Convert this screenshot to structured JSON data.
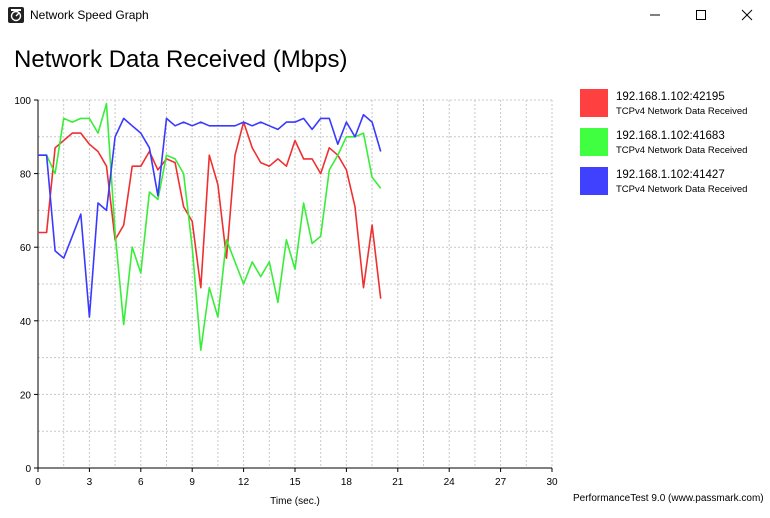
{
  "window": {
    "title": "Network Speed Graph",
    "icon": "network-graph-icon",
    "controls": [
      "minimize-icon",
      "maximize-icon",
      "close-icon"
    ]
  },
  "heading": "Network Data Received (Mbps)",
  "footer": "PerformanceTest 9.0 (www.passmark.com)",
  "colors": {
    "red": "#ff4040",
    "green": "#40ff40",
    "blue": "#4040ff",
    "line_red": "#f03030",
    "line_green": "#38ee38",
    "line_blue": "#3a3aff"
  },
  "legend": [
    {
      "name": "192.168.1.102:42195",
      "sub": "TCPv4 Network Data Received",
      "color": "#ff4040"
    },
    {
      "name": "192.168.1.102:41683",
      "sub": "TCPv4 Network Data Received",
      "color": "#40ff40"
    },
    {
      "name": "192.168.1.102:41427",
      "sub": "TCPv4 Network Data Received",
      "color": "#4040ff"
    }
  ],
  "chart_data": {
    "type": "line",
    "xlabel": "Time (sec.)",
    "ylabel": "",
    "xlim": [
      0,
      30
    ],
    "ylim": [
      0,
      100
    ],
    "xticks": [
      0,
      3,
      6,
      9,
      12,
      15,
      18,
      21,
      24,
      27,
      30
    ],
    "yticks": [
      0,
      20,
      40,
      60,
      80,
      100
    ],
    "grid": true,
    "legend_position": "right",
    "series": [
      {
        "name": "192.168.1.102:42195",
        "color": "#f03030",
        "x": [
          0,
          0.5,
          1,
          1.5,
          2,
          2.5,
          3,
          3.5,
          4,
          4.5,
          5,
          5.5,
          6,
          6.5,
          7,
          7.5,
          8,
          8.5,
          9,
          9.5,
          10,
          10.5,
          11,
          11.5,
          12,
          12.5,
          13,
          13.5,
          14,
          14.5,
          15,
          15.5,
          16,
          16.5,
          17,
          17.5,
          18,
          18.5,
          19,
          19.5,
          20
        ],
        "y": [
          64,
          64,
          87,
          89,
          91,
          91,
          88,
          86,
          82,
          62,
          66,
          82,
          82,
          86,
          81,
          84,
          83,
          71,
          67,
          49,
          85,
          77,
          57,
          85,
          94,
          87,
          83,
          82,
          84,
          82,
          89,
          84,
          84,
          80,
          87,
          85,
          81,
          71,
          49,
          66,
          46
        ]
      },
      {
        "name": "192.168.1.102:41683",
        "color": "#38ee38",
        "x": [
          0,
          0.5,
          1,
          1.5,
          2,
          2.5,
          3,
          3.5,
          4,
          4.5,
          5,
          5.5,
          6,
          6.5,
          7,
          7.5,
          8,
          8.5,
          9,
          9.5,
          10,
          10.5,
          11,
          11.5,
          12,
          12.5,
          13,
          13.5,
          14,
          14.5,
          15,
          15.5,
          16,
          16.5,
          17,
          17.5,
          18,
          18.5,
          19,
          19.5,
          20
        ],
        "y": [
          85,
          85,
          80,
          95,
          94,
          95,
          95,
          91,
          99,
          64,
          39,
          60,
          53,
          75,
          73,
          85,
          84,
          80,
          60,
          32,
          49,
          41,
          62,
          56,
          50,
          56,
          52,
          56,
          45,
          62,
          54,
          72,
          61,
          63,
          81,
          85,
          90,
          90,
          91,
          79,
          76
        ]
      },
      {
        "name": "192.168.1.102:41427",
        "color": "#3a3aff",
        "x": [
          0,
          0.5,
          1,
          1.5,
          2,
          2.5,
          3,
          3.5,
          4,
          4.5,
          5,
          5.5,
          6,
          6.5,
          7,
          7.5,
          8,
          8.5,
          9,
          9.5,
          10,
          10.5,
          11,
          11.5,
          12,
          12.5,
          13,
          13.5,
          14,
          14.5,
          15,
          15.5,
          16,
          16.5,
          17,
          17.5,
          18,
          18.5,
          19,
          19.5,
          20
        ],
        "y": [
          85,
          85,
          59,
          57,
          63,
          69,
          41,
          72,
          70,
          90,
          95,
          93,
          91,
          87,
          74,
          95,
          93,
          94,
          93,
          94,
          93,
          93,
          93,
          93,
          94,
          93,
          94,
          93,
          92,
          94,
          94,
          95,
          92,
          95,
          95,
          88,
          94,
          90,
          96,
          94,
          86
        ]
      }
    ]
  }
}
